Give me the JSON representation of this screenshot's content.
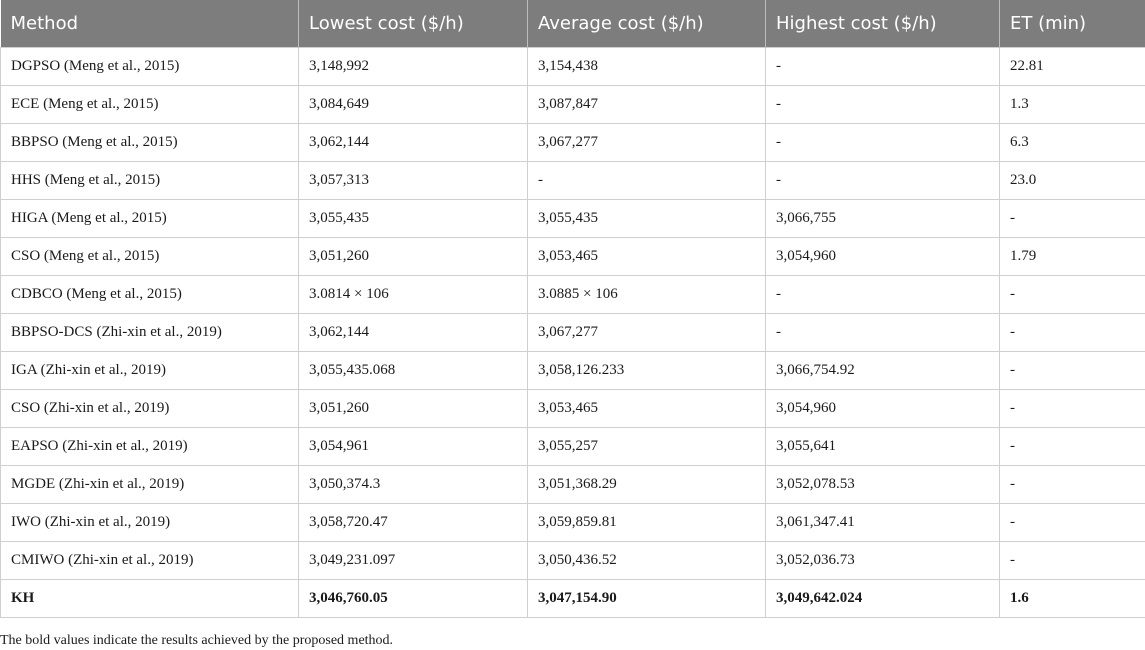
{
  "table": {
    "headers": [
      "Method",
      "Lowest cost ($/h)",
      "Average cost ($/h)",
      "Highest cost ($/h)",
      "ET (min)"
    ],
    "rows": [
      {
        "cells": [
          "DGPSO (Meng et al., 2015)",
          "3,148,992",
          "3,154,438",
          "-",
          "22.81"
        ],
        "bold": false
      },
      {
        "cells": [
          "ECE (Meng et al., 2015)",
          "3,084,649",
          "3,087,847",
          "-",
          "1.3"
        ],
        "bold": false
      },
      {
        "cells": [
          "BBPSO (Meng et al., 2015)",
          "3,062,144",
          "3,067,277",
          "-",
          "6.3"
        ],
        "bold": false
      },
      {
        "cells": [
          "HHS (Meng et al., 2015)",
          "3,057,313",
          "-",
          "-",
          "23.0"
        ],
        "bold": false
      },
      {
        "cells": [
          "HIGA (Meng et al., 2015)",
          "3,055,435",
          "3,055,435",
          "3,066,755",
          "-"
        ],
        "bold": false
      },
      {
        "cells": [
          "CSO (Meng et al., 2015)",
          "3,051,260",
          "3,053,465",
          "3,054,960",
          "1.79"
        ],
        "bold": false
      },
      {
        "cells": [
          "CDBCO (Meng et al., 2015)",
          "3.0814 × 106",
          "3.0885 × 106",
          "-",
          "-"
        ],
        "bold": false
      },
      {
        "cells": [
          "BBPSO-DCS (Zhi-xin et al., 2019)",
          "3,062,144",
          "3,067,277",
          "-",
          "-"
        ],
        "bold": false
      },
      {
        "cells": [
          "IGA (Zhi-xin et al., 2019)",
          "3,055,435.068",
          "3,058,126.233",
          "3,066,754.92",
          "-"
        ],
        "bold": false
      },
      {
        "cells": [
          "CSO (Zhi-xin et al., 2019)",
          "3,051,260",
          "3,053,465",
          "3,054,960",
          "-"
        ],
        "bold": false
      },
      {
        "cells": [
          "EAPSO (Zhi-xin et al., 2019)",
          "3,054,961",
          "3,055,257",
          "3,055,641",
          "-"
        ],
        "bold": false
      },
      {
        "cells": [
          "MGDE (Zhi-xin et al., 2019)",
          "3,050,374.3",
          "3,051,368.29",
          "3,052,078.53",
          "-"
        ],
        "bold": false
      },
      {
        "cells": [
          "IWO (Zhi-xin et al., 2019)",
          "3,058,720.47",
          "3,059,859.81",
          "3,061,347.41",
          "-"
        ],
        "bold": false
      },
      {
        "cells": [
          "CMIWO (Zhi-xin et al., 2019)",
          "3,049,231.097",
          "3,050,436.52",
          "3,052,036.73",
          "-"
        ],
        "bold": false
      },
      {
        "cells": [
          "KH",
          "3,046,760.05",
          "3,047,154.90",
          "3,049,642.024",
          "1.6"
        ],
        "bold": true
      }
    ]
  },
  "footnote": "The bold values indicate the results achieved by the proposed method.",
  "colors": {
    "header_background": "#7d7d7d",
    "header_text": "#ffffff",
    "grid_line": "#cfcfcf"
  }
}
